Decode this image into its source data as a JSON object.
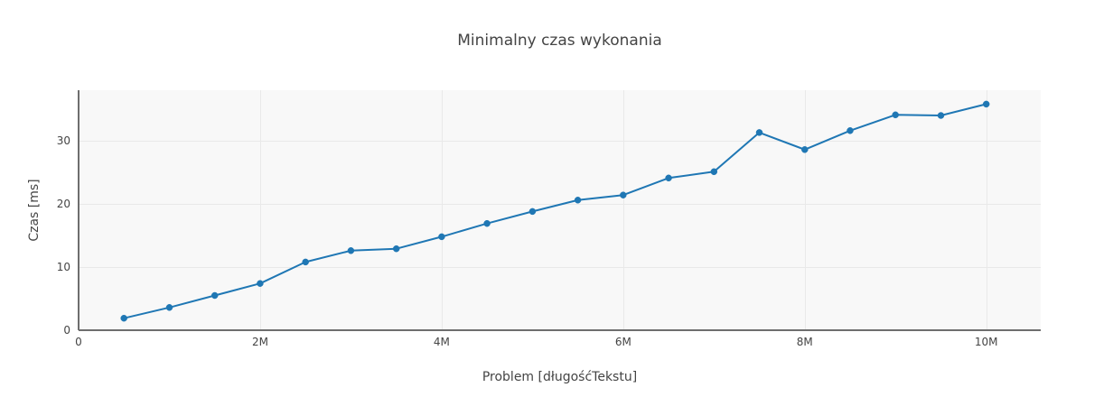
{
  "chart_data": {
    "type": "line",
    "title": "Minimalny czas wykonania",
    "xlabel": "Problem [długośćTekstu]",
    "ylabel": "Czas [ms]",
    "xlim": [
      0,
      10600000
    ],
    "ylim": [
      0,
      38
    ],
    "x_ticks": [
      0,
      2000000,
      4000000,
      6000000,
      8000000,
      10000000
    ],
    "x_tick_labels": [
      "0",
      "2M",
      "4M",
      "6M",
      "8M",
      "10M"
    ],
    "y_ticks": [
      0,
      10,
      20,
      30
    ],
    "y_tick_labels": [
      "0",
      "10",
      "20",
      "30"
    ],
    "grid": true,
    "legend": "none",
    "series": [
      {
        "color": "#1f77b4",
        "x": [
          500000,
          1000000,
          1500000,
          2000000,
          2500000,
          3000000,
          3500000,
          4000000,
          4500000,
          5000000,
          5500000,
          6000000,
          6500000,
          7000000,
          7500000,
          8000000,
          8500000,
          9000000,
          9500000,
          10000000
        ],
        "y": [
          1.9,
          3.6,
          5.5,
          7.4,
          10.8,
          12.6,
          12.9,
          14.8,
          16.9,
          18.8,
          20.6,
          21.4,
          24.1,
          25.1,
          31.3,
          28.6,
          31.6,
          34.1,
          34.0,
          35.8
        ]
      }
    ]
  }
}
